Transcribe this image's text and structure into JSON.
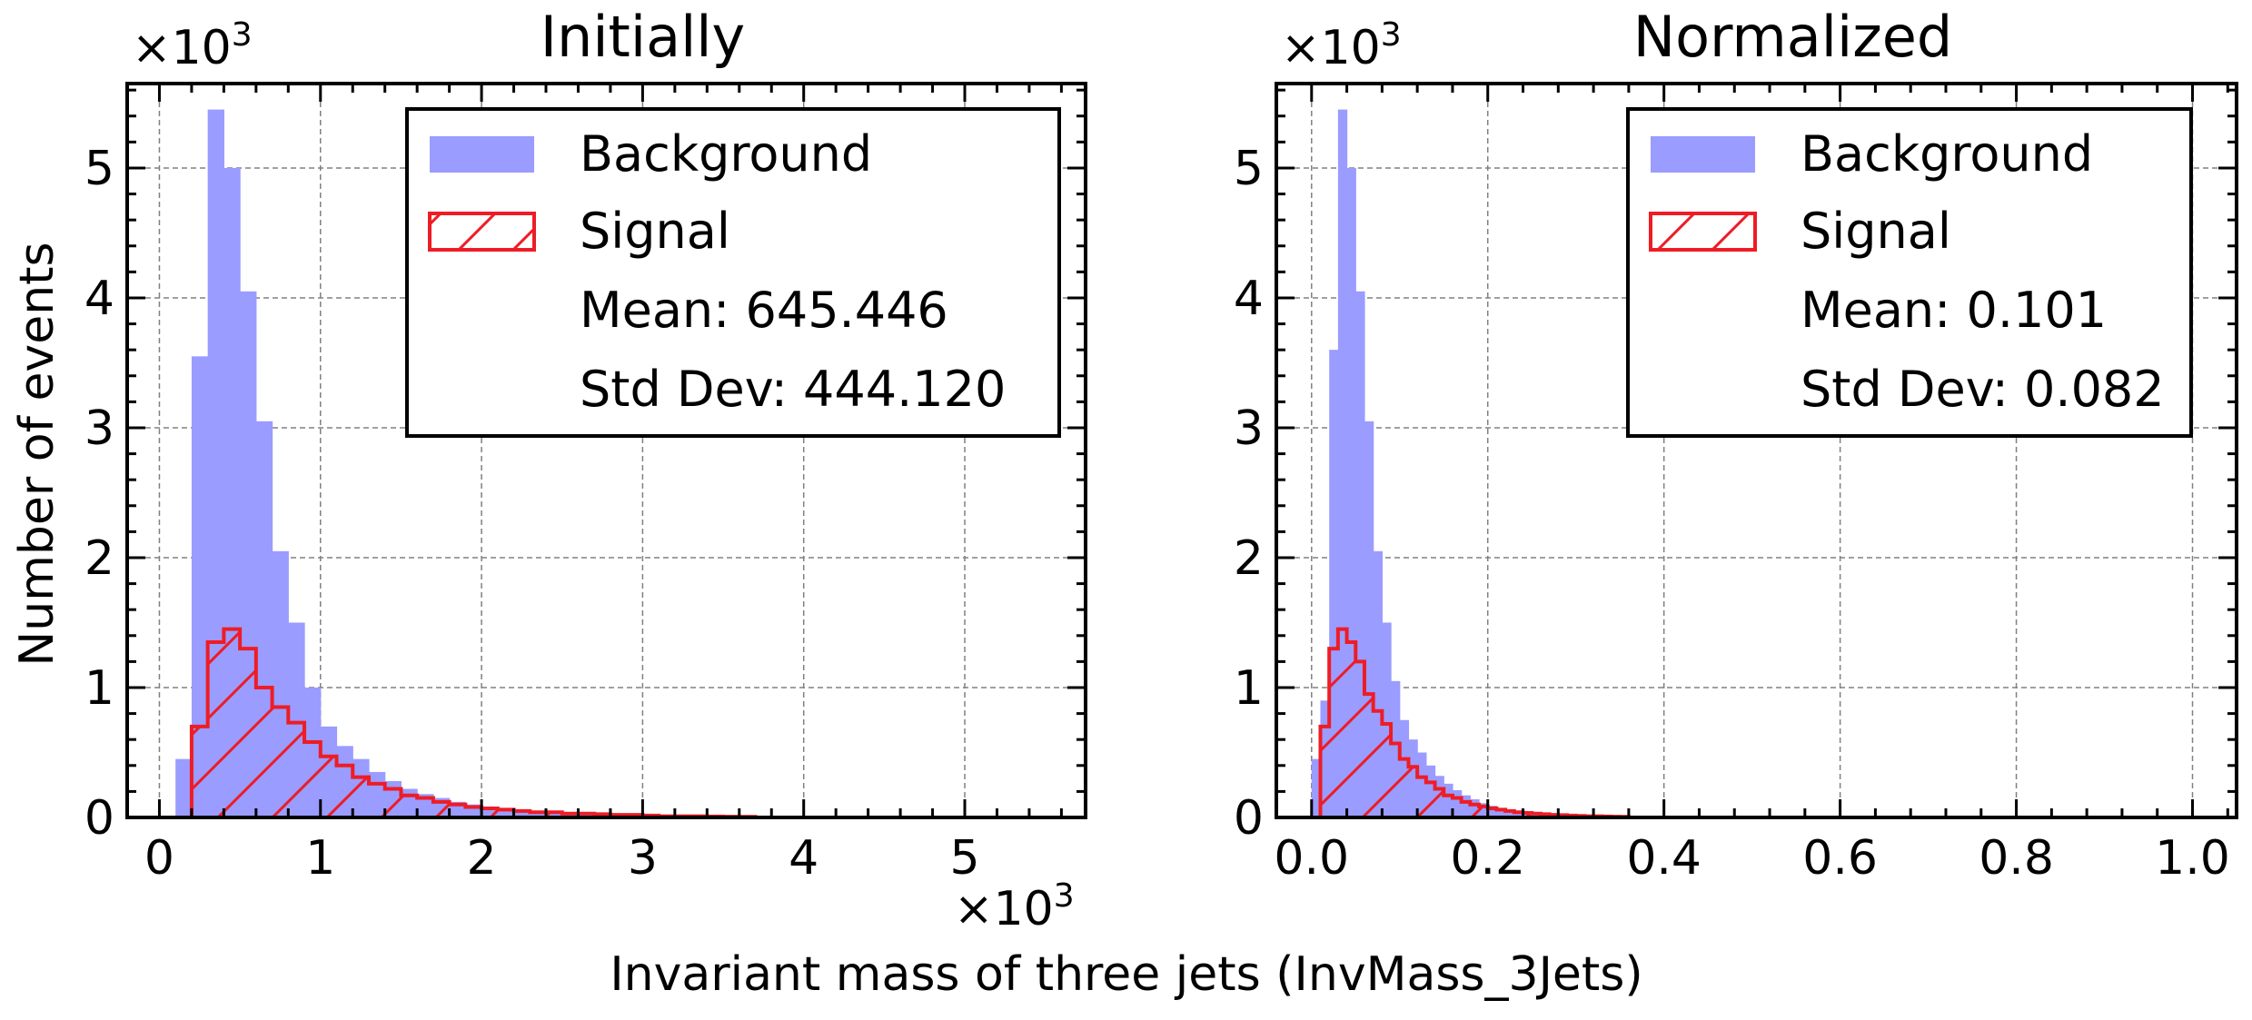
{
  "figure": {
    "xlabel": "Invariant mass of three jets (InvMass_3Jets)",
    "ylabel": "Number of events",
    "x_offset_text": "×10",
    "x_offset_exp": "3"
  },
  "colors": {
    "background_fill": "#9a9cff",
    "signal_edge": "#ee1c25",
    "grid": "#808080"
  },
  "chart_data": [
    {
      "type": "bar",
      "title": "Initially",
      "y_offset_text": "×10",
      "y_offset_exp": "3",
      "xlim": [
        -0.2,
        5.75
      ],
      "ylim": [
        0,
        5.65
      ],
      "x_unit_multiplier": "×10^3",
      "y_unit_multiplier": "×10^3",
      "x_ticks": [
        0,
        1,
        2,
        3,
        4,
        5
      ],
      "x_tick_labels": [
        "0",
        "1",
        "2",
        "3",
        "4",
        "5"
      ],
      "y_ticks": [
        0,
        1,
        2,
        3,
        4,
        5
      ],
      "y_tick_labels": [
        "0",
        "1",
        "2",
        "3",
        "4",
        "5"
      ],
      "grid": true,
      "legend_placement": "top-right",
      "bin_edges_start": 0.1,
      "bin_width": 0.1,
      "series": [
        {
          "name": "Background",
          "style": "filled histogram",
          "values": [
            0.45,
            3.55,
            5.45,
            5.0,
            4.05,
            3.05,
            2.05,
            1.5,
            1.0,
            0.7,
            0.55,
            0.45,
            0.35,
            0.28,
            0.22,
            0.18,
            0.15,
            0.12,
            0.1,
            0.08,
            0.07,
            0.06,
            0.05,
            0.04,
            0.03,
            0.025,
            0.02,
            0.015,
            0.012,
            0.01,
            0.008,
            0.006
          ]
        },
        {
          "name": "Signal",
          "style": "hatched step histogram",
          "values": [
            0.0,
            0.7,
            1.35,
            1.45,
            1.3,
            1.0,
            0.85,
            0.73,
            0.58,
            0.47,
            0.4,
            0.31,
            0.26,
            0.22,
            0.17,
            0.15,
            0.12,
            0.1,
            0.08,
            0.07,
            0.06,
            0.05,
            0.04,
            0.04,
            0.03,
            0.03,
            0.025,
            0.02,
            0.02,
            0.015,
            0.01,
            0.01,
            0.01,
            0.008,
            0.006,
            0.005
          ]
        }
      ],
      "legend": {
        "background": "Background",
        "signal": "Signal",
        "mean": "Mean: 645.446",
        "std": "Std Dev: 444.120"
      }
    },
    {
      "type": "bar",
      "title": "Normalized",
      "y_offset_text": "×10",
      "y_offset_exp": "3",
      "xlim": [
        -0.04,
        1.05
      ],
      "ylim": [
        0,
        5.65
      ],
      "y_unit_multiplier": "×10^3",
      "x_ticks": [
        0.0,
        0.2,
        0.4,
        0.6,
        0.8,
        1.0
      ],
      "x_tick_labels": [
        "0.0",
        "0.2",
        "0.4",
        "0.6",
        "0.8",
        "1.0"
      ],
      "y_ticks": [
        0,
        1,
        2,
        3,
        4,
        5
      ],
      "y_tick_labels": [
        "0",
        "1",
        "2",
        "3",
        "4",
        "5"
      ],
      "grid": true,
      "legend_placement": "top-right",
      "bin_edges_start": 0.0,
      "bin_width": 0.01,
      "series": [
        {
          "name": "Background",
          "style": "filled histogram",
          "values": [
            0.45,
            0.9,
            3.6,
            5.45,
            5.0,
            4.05,
            3.05,
            2.05,
            1.5,
            1.05,
            0.75,
            0.6,
            0.5,
            0.4,
            0.32,
            0.26,
            0.21,
            0.17,
            0.14,
            0.11,
            0.09,
            0.07,
            0.06,
            0.05,
            0.04,
            0.03,
            0.025,
            0.02,
            0.015,
            0.012,
            0.01,
            0.008
          ]
        },
        {
          "name": "Signal",
          "style": "hatched step histogram",
          "values": [
            0.0,
            0.7,
            1.3,
            1.45,
            1.35,
            1.2,
            0.95,
            0.82,
            0.72,
            0.57,
            0.45,
            0.39,
            0.31,
            0.27,
            0.22,
            0.17,
            0.15,
            0.12,
            0.1,
            0.085,
            0.07,
            0.06,
            0.05,
            0.04,
            0.035,
            0.03,
            0.025,
            0.02,
            0.018,
            0.015,
            0.012,
            0.01,
            0.01,
            0.008,
            0.006,
            0.005
          ]
        }
      ],
      "legend": {
        "background": "Background",
        "signal": "Signal",
        "mean": "Mean: 0.101",
        "std": "Std Dev: 0.082"
      }
    }
  ]
}
